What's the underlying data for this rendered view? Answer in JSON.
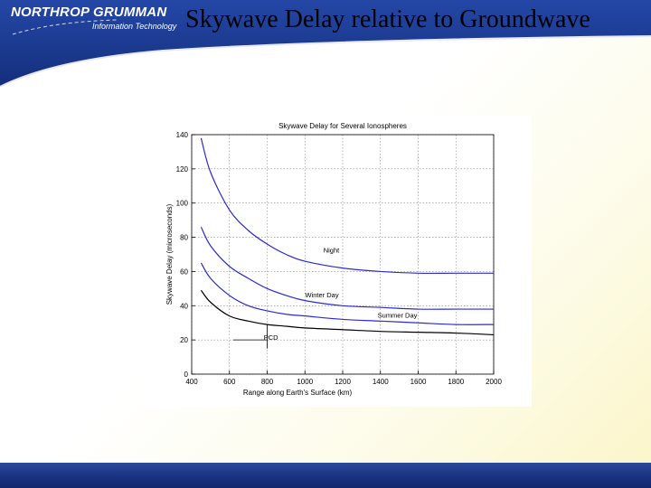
{
  "header": {
    "brand_name": "NORTHROP GRUMMAN",
    "brand_division": "Information Technology",
    "slide_title": "Skywave Delay relative to Groundwave"
  },
  "colors": {
    "header_blue": "#1b3a8f",
    "footer_blue": "#1a3280",
    "curve_blue": "#2a2ad8",
    "curve_black": "#000000"
  },
  "chart_data": {
    "type": "line",
    "title": "Skywave Delay for Several Ionospheres",
    "xlabel": "Range along Earth's Surface (km)",
    "ylabel": "Skywave Delay (microseconds)",
    "xlim": [
      400,
      2000
    ],
    "ylim": [
      0,
      140
    ],
    "x_ticks": [
      "400",
      "600",
      "800",
      "1000",
      "1200",
      "1400",
      "1600",
      "1800",
      "2000"
    ],
    "y_ticks": [
      "0",
      "20",
      "40",
      "60",
      "80",
      "100",
      "120",
      "140"
    ],
    "grid": true,
    "series": [
      {
        "name": "Night",
        "color": "#2a2ad8",
        "x": [
          450,
          500,
          600,
          700,
          800,
          900,
          1000,
          1200,
          1400,
          1600,
          1800,
          2000
        ],
        "y": [
          138,
          118,
          96,
          84,
          76,
          70,
          66,
          62,
          60,
          59,
          59,
          59
        ]
      },
      {
        "name": "Winter Day",
        "color": "#2a2ad8",
        "x": [
          450,
          500,
          600,
          700,
          800,
          900,
          1000,
          1200,
          1400,
          1600,
          1800,
          2000
        ],
        "y": [
          86,
          75,
          63,
          56,
          50,
          46,
          43,
          40,
          39,
          38,
          38,
          38
        ]
      },
      {
        "name": "Summer Day",
        "color": "#2a2ad8",
        "x": [
          450,
          500,
          600,
          700,
          800,
          900,
          1000,
          1200,
          1400,
          1600,
          1800,
          2000
        ],
        "y": [
          65,
          56,
          46,
          40,
          37,
          35,
          34,
          32,
          31,
          30,
          29,
          29
        ]
      },
      {
        "name": "PCD",
        "color": "#000000",
        "x": [
          450,
          500,
          600,
          700,
          800,
          900,
          1000,
          1200,
          1400,
          1600,
          1800,
          2000
        ],
        "y": [
          49,
          42,
          34,
          31,
          29,
          28,
          27,
          26,
          25,
          24.5,
          24,
          23
        ]
      }
    ],
    "annotations": [
      {
        "text": "Night",
        "x": 1140,
        "y": 71
      },
      {
        "text": "Winter Day",
        "x": 1090,
        "y": 45
      },
      {
        "text": "Summer Day",
        "x": 1490,
        "y": 33
      },
      {
        "text": "PCD",
        "x": 820,
        "y": 20
      }
    ]
  }
}
